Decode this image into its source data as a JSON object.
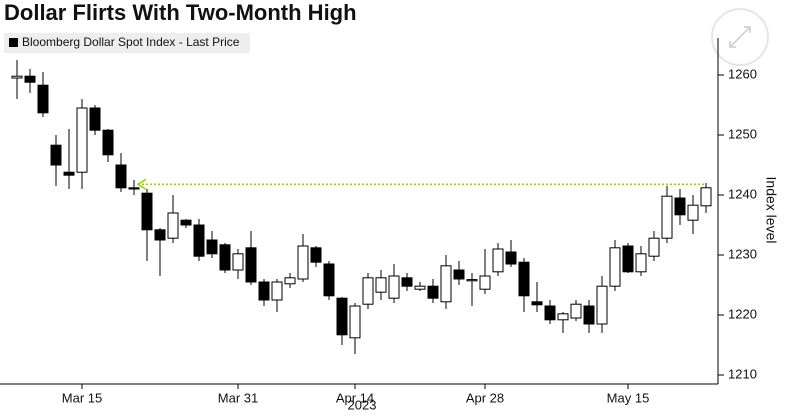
{
  "chart_data": {
    "type": "candlestick",
    "title": "Dollar Flirts With Two-Month High",
    "legend": "Bloomberg Dollar Spot Index - Last Price",
    "y_label": "Index level",
    "x_sublabel": "2023",
    "categories": [
      null,
      null,
      null,
      null,
      null,
      "Mar 15",
      null,
      null,
      null,
      null,
      null,
      null,
      null,
      null,
      null,
      null,
      null,
      "Mar 31",
      null,
      null,
      null,
      null,
      null,
      null,
      null,
      null,
      "Apr 14",
      null,
      null,
      null,
      null,
      null,
      null,
      null,
      null,
      null,
      "Apr 28",
      null,
      null,
      null,
      null,
      null,
      null,
      null,
      null,
      null,
      null,
      "May 15",
      null,
      null,
      null,
      null,
      null,
      null
    ],
    "open": [
      1259.5,
      1259.8,
      1258.3,
      1248.3,
      1243.8,
      1243.8,
      1254.5,
      1250.8,
      1245,
      1241.2,
      1240.3,
      1234.2,
      1232.8,
      1235.8,
      1235,
      1232.5,
      1231.7,
      1227.5,
      1231.2,
      1225.5,
      1222.5,
      1225.2,
      1226,
      1231.2,
      1228.5,
      1222.8,
      1216.2,
      1221.8,
      1223.8,
      1222.8,
      1226.2,
      1224.3,
      1224.8,
      1222.2,
      1227.5,
      1225.7,
      1224.3,
      1227.2,
      1230.5,
      1228.8,
      1222.2,
      1221.5,
      1219.2,
      1219.5,
      1221.5,
      1218.5,
      1224.8,
      1231.5,
      1227.2,
      1229.8,
      1232.8,
      1239.5,
      1235.8,
      1238.2
    ],
    "high": [
      1262.5,
      1261,
      1260.5,
      1250,
      1251,
      1256,
      1255,
      1251,
      1247,
      1242.5,
      1241,
      1234.5,
      1240,
      1236,
      1236,
      1234,
      1232,
      1231,
      1234,
      1226,
      1226,
      1227,
      1233.5,
      1231.5,
      1229,
      1223,
      1222,
      1227,
      1227.5,
      1228.5,
      1227,
      1225.5,
      1226,
      1230,
      1229,
      1227,
      1231,
      1232,
      1232.5,
      1229.5,
      1225.5,
      1222.5,
      1220.5,
      1222.5,
      1222.5,
      1226.5,
      1232.5,
      1232,
      1231.5,
      1234,
      1241.5,
      1241,
      1240,
      1242
    ],
    "low": [
      1256,
      1257,
      1253,
      1241.5,
      1241,
      1241,
      1250,
      1245.5,
      1240.5,
      1240,
      1229,
      1226.5,
      1232,
      1234.5,
      1229,
      1229.5,
      1227,
      1226,
      1225,
      1221.5,
      1220.5,
      1224.5,
      1225.5,
      1228,
      1222.5,
      1215,
      1213.5,
      1221,
      1222.5,
      1222,
      1224,
      1224,
      1222,
      1221,
      1225,
      1221.5,
      1223.5,
      1226.5,
      1228,
      1220.5,
      1220.5,
      1218.5,
      1217,
      1219,
      1217,
      1217,
      1224,
      1227,
      1226.5,
      1229,
      1232,
      1235,
      1233.5,
      1237
    ],
    "close": [
      1259.8,
      1258.8,
      1253.7,
      1245,
      1243.3,
      1254.5,
      1250.8,
      1246.7,
      1241.2,
      1241,
      1234.2,
      1232.5,
      1237,
      1235,
      1229.8,
      1230.2,
      1227.5,
      1230.2,
      1225.5,
      1222.5,
      1225.5,
      1226.2,
      1231.5,
      1228.8,
      1223.2,
      1216.7,
      1221.5,
      1226.2,
      1226.2,
      1226.5,
      1224.8,
      1224.8,
      1222.8,
      1228.2,
      1226,
      1225.9,
      1226.5,
      1231,
      1228.5,
      1223.2,
      1221.7,
      1219.2,
      1220.2,
      1221.8,
      1218.5,
      1224.8,
      1231.2,
      1227.2,
      1230.2,
      1232.8,
      1239.8,
      1236.7,
      1238.3,
      1241.2
    ],
    "up_color": "#ffffff",
    "down_color": "#000000",
    "reference_line": {
      "value": 1241.8,
      "color": "#8fd400"
    },
    "ylim": [
      1208.5,
      1266
    ],
    "yticks": [
      1210,
      1220,
      1230,
      1240,
      1250,
      1260
    ]
  }
}
